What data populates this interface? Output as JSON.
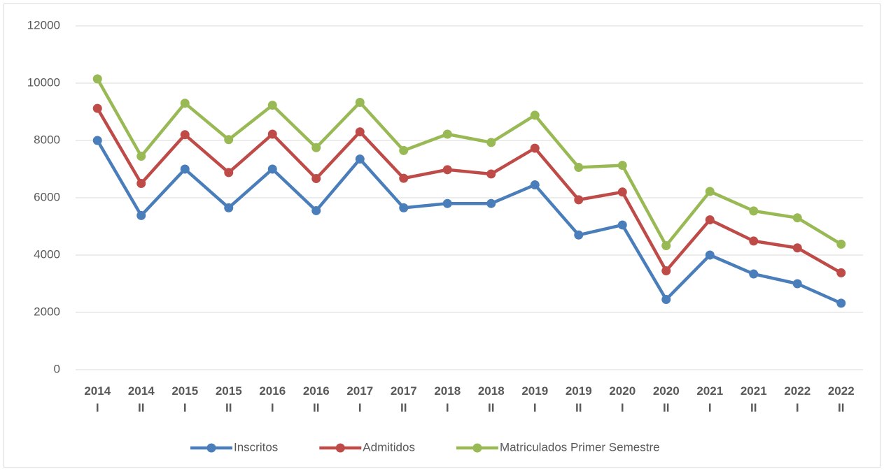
{
  "chart_data": {
    "type": "line",
    "categories": [
      "2014\nI",
      "2014\nII",
      "2015\nI",
      "2015\nII",
      "2016\nI",
      "2016\nII",
      "2017\nI",
      "2017\nII",
      "2018\nI",
      "2018\nII",
      "2019\nI",
      "2019\nII",
      "2020\nI",
      "2020\nII",
      "2021\nI",
      "2021\nII",
      "2022\nI",
      "2022\nII"
    ],
    "series": [
      {
        "name": "Inscritos",
        "color": "#4a7ebb",
        "values": [
          8000,
          5380,
          7000,
          5650,
          7000,
          5550,
          7350,
          5650,
          5800,
          5800,
          6450,
          4700,
          5050,
          2450,
          4000,
          3340,
          3000,
          2320
        ]
      },
      {
        "name": "Admitidos",
        "color": "#be4b48",
        "values": [
          9120,
          6500,
          8200,
          6880,
          8220,
          6670,
          8300,
          6680,
          6980,
          6830,
          7730,
          5930,
          6200,
          3450,
          5230,
          4490,
          4250,
          3380
        ]
      },
      {
        "name": "Matriculados Primer Semestre",
        "color": "#98b954",
        "values": [
          10150,
          7450,
          9300,
          8030,
          9230,
          7750,
          9330,
          7650,
          8220,
          7930,
          8880,
          7060,
          7130,
          4330,
          6220,
          5540,
          5300,
          4380
        ]
      }
    ],
    "ylim": [
      0,
      12000
    ],
    "yticks": [
      0,
      2000,
      4000,
      6000,
      8000,
      10000,
      12000
    ],
    "grid": true,
    "legend": "bottom"
  }
}
